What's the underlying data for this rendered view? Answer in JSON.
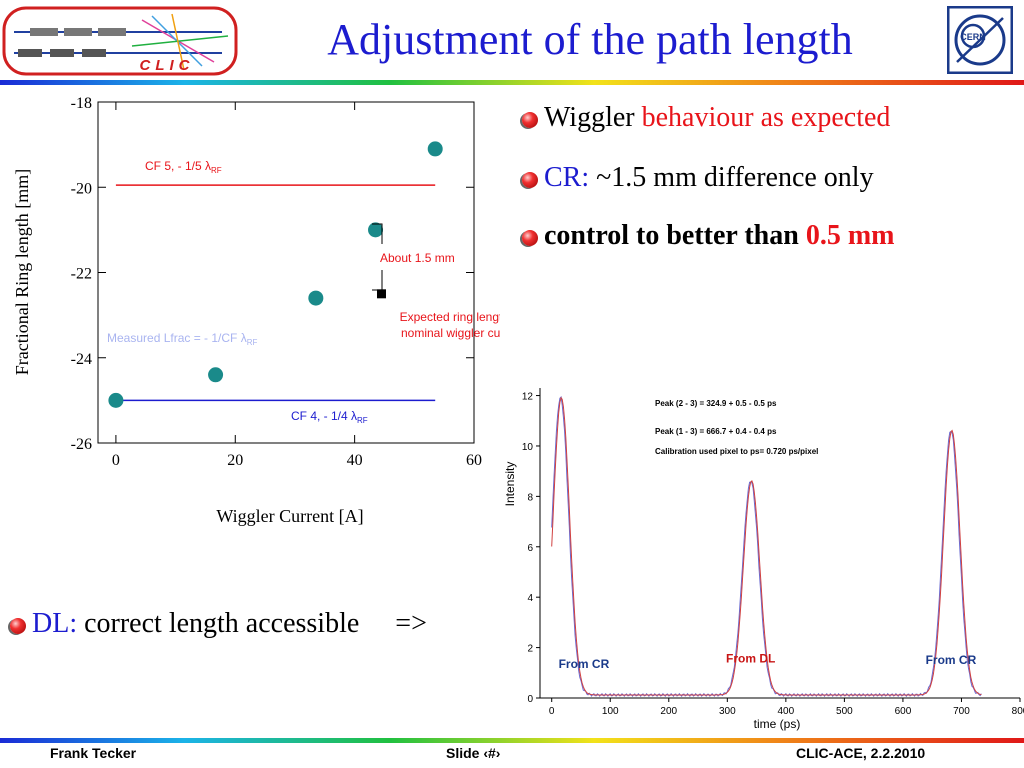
{
  "slide": {
    "title": "Adjustment of the path length",
    "clic_logo_text": "CLIC",
    "cern_logo_text": "CERN",
    "bullets": [
      {
        "prefix": "Wiggler ",
        "highlight": "behaviour as expected"
      },
      {
        "lead": "CR:",
        "text": " ~1.5 mm difference only"
      },
      {
        "text": "control to better than ",
        "highlight": "0.5 mm"
      }
    ],
    "dl_bullet": {
      "lead": "DL:",
      "text": " correct length accessible",
      "arrow": "=>"
    },
    "footer": {
      "left": "Frank Tecker",
      "center": "Slide ‹#›",
      "right": "CLIC-ACE, 2.2.2010"
    }
  },
  "chart_data": [
    {
      "type": "scatter",
      "xlabel": "Wiggler Current [A]",
      "ylabel": "Fractional Ring length [mm]",
      "xlim": [
        -3,
        60
      ],
      "ylim": [
        -26,
        -18
      ],
      "xticks": [
        0,
        20,
        40,
        60
      ],
      "yticks": [
        -18,
        -20,
        -22,
        -24,
        -26
      ],
      "series": [
        {
          "name": "Measured Lfrac = - 1/CF λRF",
          "color": "#1a8a8a",
          "x": [
            0,
            16.7,
            33.5,
            43.5,
            53.5
          ],
          "y": [
            -25.0,
            -24.4,
            -22.6,
            -21.0,
            -19.1
          ]
        },
        {
          "name": "Expected ring length for nominal wiggler current",
          "color": "#000000",
          "x": [
            44.5
          ],
          "y": [
            -22.5
          ]
        }
      ],
      "reference_lines": [
        {
          "label": "CF 5, - 1/5 λRF",
          "y": -19.95,
          "x_range": [
            0,
            53.5
          ],
          "color": "#e8141a"
        },
        {
          "label": "CF 4, - 1/4 λRF",
          "y": -25.0,
          "x_range": [
            0,
            53.5
          ],
          "color": "#1c1ccf"
        }
      ],
      "annotations": [
        {
          "text": "About 1.5 mm",
          "color": "#e8141a"
        },
        {
          "text": "Expected ring length for",
          "color": "#e8141a"
        },
        {
          "text": "nominal wiggler current",
          "color": "#e8141a"
        },
        {
          "text": "Measured Lfrac = - 1/CF λRF",
          "color": "#a9b4f0"
        },
        {
          "text": "CF 5, - 1/5 λRF",
          "color": "#e8141a"
        },
        {
          "text": "CF 4, - 1/4 λRF",
          "color": "#1c1ccf"
        }
      ],
      "grid": false
    },
    {
      "type": "line",
      "xlabel": "time (ps)",
      "ylabel": "Intensity",
      "xlim": [
        -20,
        800
      ],
      "ylim": [
        0,
        12.3
      ],
      "xticks": [
        0,
        100,
        200,
        300,
        400,
        500,
        600,
        700,
        800
      ],
      "yticks": [
        0,
        2,
        4,
        6,
        8,
        10,
        12
      ],
      "peaks": [
        {
          "center": 15,
          "height": 11.8,
          "label": "From CR",
          "label_color": "#1a3a8a"
        },
        {
          "center": 340,
          "height": 8.5,
          "label": "From DL",
          "label_color": "#c81414"
        },
        {
          "center": 682,
          "height": 10.5,
          "label": "From CR",
          "label_color": "#1a3a8a"
        }
      ],
      "notes": [
        "Peak (2 - 3) = 324.9 +  0.5 -  0.5 ps",
        "Peak (1 - 3) = 666.7 +  0.4 -  0.4 ps",
        "Calibration used pixel to ps= 0.720 ps/pixel"
      ],
      "series": [
        {
          "color": "#6a6ad0"
        },
        {
          "color": "#d04040"
        }
      ]
    }
  ]
}
